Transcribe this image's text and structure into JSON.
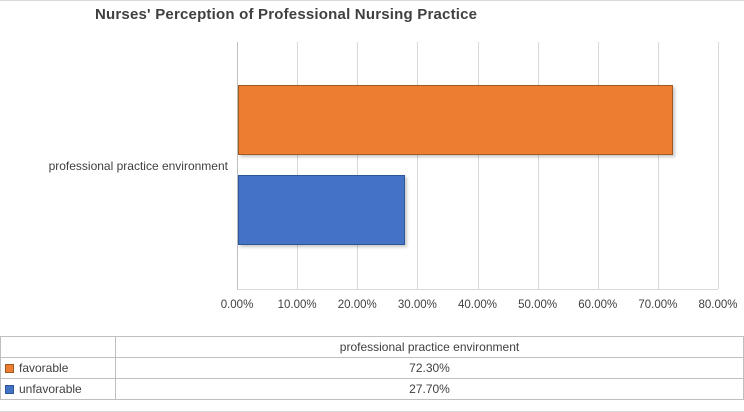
{
  "chart_data": {
    "type": "bar",
    "orientation": "horizontal",
    "title": "Nurses' Perception of Professional Nursing Practice",
    "categories": [
      "professional practice environment"
    ],
    "series": [
      {
        "name": "favorable",
        "values": [
          72.3
        ],
        "color": "#ED7D31",
        "border_color": "#9C5B25",
        "label": "72.30%"
      },
      {
        "name": "unfavorable",
        "values": [
          27.7
        ],
        "color": "#4472C4",
        "border_color": "#2E5597",
        "label": "27.70%"
      }
    ],
    "xlim": [
      0,
      80
    ],
    "x_ticks": [
      "0.00%",
      "10.00%",
      "20.00%",
      "30.00%",
      "40.00%",
      "50.00%",
      "60.00%",
      "70.00%",
      "80.00%"
    ],
    "grid": true,
    "gridline_color": "#D9D9D9",
    "legend_position": "data-table-below"
  },
  "table": {
    "header": "professional practice environment",
    "rows": [
      {
        "label": "favorable",
        "value": "72.30%",
        "swatch_color": "#ED7D31",
        "swatch_border": "#9C5B25"
      },
      {
        "label": "unfavorable",
        "value": "27.70%",
        "swatch_color": "#4472C4",
        "swatch_border": "#2E5597"
      }
    ]
  }
}
